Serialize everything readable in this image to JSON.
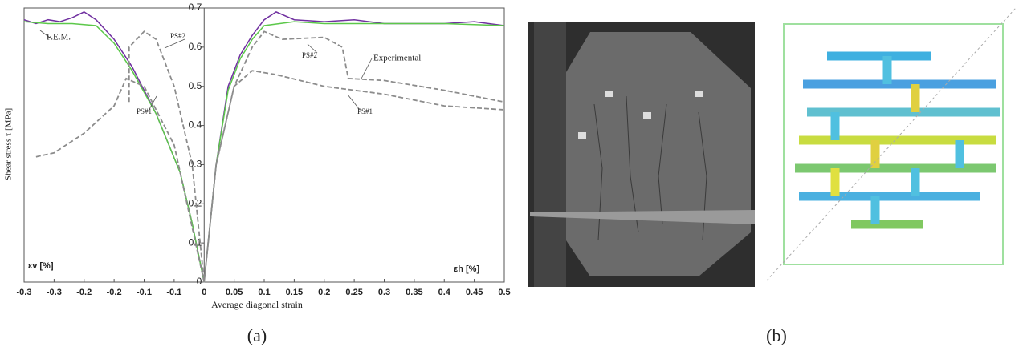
{
  "chart_data": {
    "type": "line",
    "xlabel": "Average diagonal strain",
    "ylabel": "Shear stress τ [MPa]",
    "xlim": [
      -0.3,
      0.5
    ],
    "ylim": [
      0,
      0.7
    ],
    "xticks": [
      -0.3,
      {
        "value": -0.25,
        "label": "-0.3"
      },
      -0.2,
      {
        "value": -0.15,
        "label": "-0.2"
      },
      -0.1,
      {
        "value": -0.05,
        "label": "-0.1"
      },
      0,
      0.05,
      0.1,
      0.15,
      0.2,
      0.25,
      0.3,
      0.35,
      0.4,
      0.45,
      0.5
    ],
    "yticks": [
      0,
      0.1,
      0.2,
      0.3,
      0.4,
      0.5,
      0.6,
      0.7
    ],
    "grid": false,
    "series": [
      {
        "name": "F.E.M.",
        "color": "#7030a0",
        "dash": false,
        "x": [
          -0.3,
          -0.28,
          -0.26,
          -0.24,
          -0.22,
          -0.2,
          -0.18,
          -0.15,
          -0.12,
          -0.08,
          -0.04,
          -0.02,
          0,
          0.02,
          0.04,
          0.06,
          0.08,
          0.1,
          0.12,
          0.15,
          0.2,
          0.25,
          0.3,
          0.4,
          0.45,
          0.5
        ],
        "values": [
          0.67,
          0.66,
          0.67,
          0.665,
          0.675,
          0.69,
          0.67,
          0.62,
          0.55,
          0.43,
          0.28,
          0.15,
          0,
          0.3,
          0.5,
          0.58,
          0.63,
          0.67,
          0.69,
          0.67,
          0.665,
          0.67,
          0.66,
          0.66,
          0.665,
          0.655
        ]
      },
      {
        "color": "#5cc84a",
        "dash": false,
        "x": [
          -0.3,
          -0.26,
          -0.22,
          -0.18,
          -0.15,
          -0.12,
          -0.08,
          -0.04,
          -0.02,
          0,
          0.02,
          0.04,
          0.06,
          0.08,
          0.1,
          0.15,
          0.2,
          0.3,
          0.4,
          0.5
        ],
        "values": [
          0.665,
          0.66,
          0.66,
          0.655,
          0.61,
          0.54,
          0.43,
          0.28,
          0.15,
          0,
          0.3,
          0.49,
          0.57,
          0.62,
          0.655,
          0.665,
          0.66,
          0.66,
          0.66,
          0.655
        ]
      },
      {
        "name": "PS#1",
        "color": "#8c8c8c",
        "dash": true,
        "x": [
          -0.28,
          -0.25,
          -0.2,
          -0.15,
          -0.13,
          -0.1,
          -0.05,
          0,
          0.02,
          0.05,
          0.08,
          0.12,
          0.2,
          0.3,
          0.4,
          0.5
        ],
        "values": [
          0.32,
          0.33,
          0.38,
          0.45,
          0.52,
          0.5,
          0.35,
          0,
          0.3,
          0.5,
          0.54,
          0.53,
          0.5,
          0.48,
          0.45,
          0.44
        ]
      },
      {
        "name": "PS#2",
        "color": "#8c8c8c",
        "dash": true,
        "x": [
          -0.125,
          -0.125,
          -0.1,
          -0.08,
          -0.05,
          -0.02,
          0,
          0.02,
          0.05,
          0.08,
          0.1,
          0.13,
          0.2,
          0.23,
          0.24,
          0.3,
          0.4,
          0.5
        ],
        "values": [
          0.46,
          0.6,
          0.64,
          0.62,
          0.5,
          0.3,
          0,
          0.3,
          0.5,
          0.6,
          0.64,
          0.62,
          0.625,
          0.6,
          0.52,
          0.515,
          0.49,
          0.46
        ]
      }
    ],
    "annotations": [
      "F.E.M.",
      "PS#2",
      "PS#1",
      "PS#2",
      "Experimental",
      "PS#1",
      "εv [%]",
      "εh [%]"
    ]
  },
  "panels": [
    "(a)",
    "(b)"
  ]
}
